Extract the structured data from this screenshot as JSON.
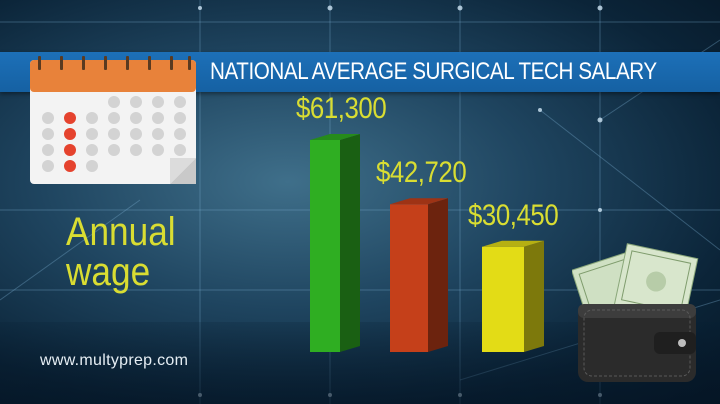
{
  "title": "NATIONAL AVERAGE SURGICAL TECH SALARY",
  "wage_label_line1": "Annual",
  "wage_label_line2": "wage",
  "footer": "www.multyprep.com",
  "colors": {
    "title_band": "#1d70b8",
    "label": "#d9dd32",
    "calendar_header": "#e8823a",
    "calendar_highlight": "#e5432e"
  },
  "icons": [
    "calendar-icon",
    "wallet-icon"
  ],
  "chart_data": {
    "type": "bar",
    "categories": [
      "",
      "",
      ""
    ],
    "values": [
      61300,
      42720,
      30450
    ],
    "value_labels": [
      "$61,300",
      "$42,720",
      "$30,450"
    ],
    "colors": [
      "#2fae22",
      "#c5401a",
      "#e3dc16"
    ],
    "ylim": [
      0,
      61300
    ],
    "grid": false,
    "legend": "none"
  }
}
